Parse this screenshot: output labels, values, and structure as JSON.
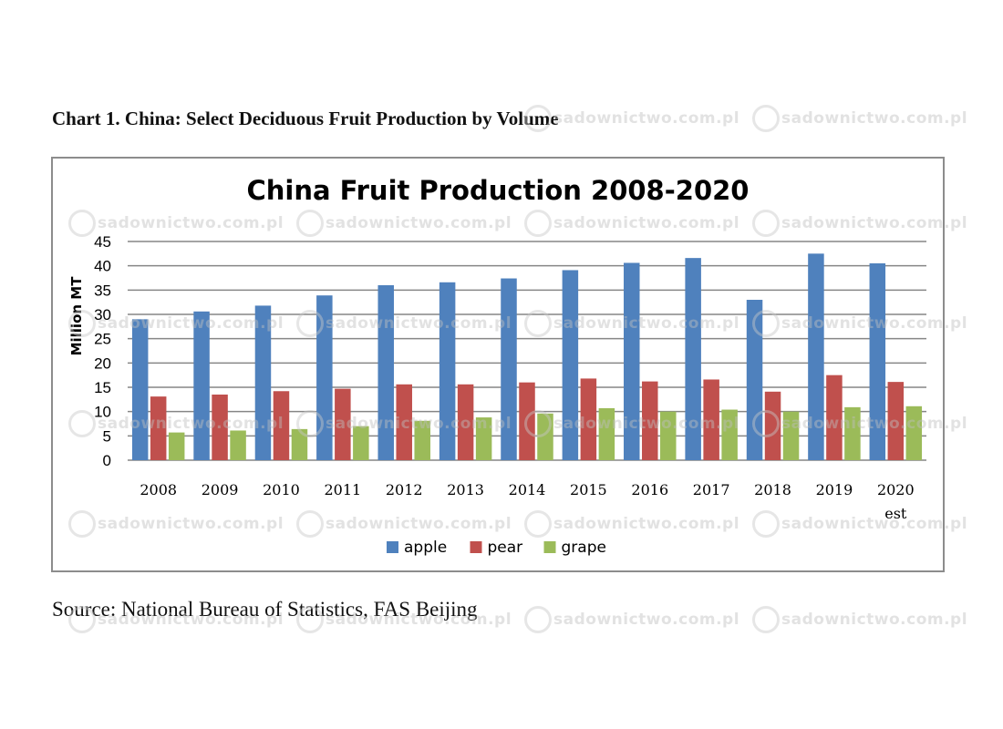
{
  "caption": "Chart 1. China: Select Deciduous Fruit Production by Volume",
  "source": "Source: National Bureau of Statistics, FAS Beijing",
  "watermark": "sadownictwo.com.pl",
  "chart_data": {
    "type": "bar",
    "title": "China Fruit Production 2008-2020",
    "xlabel": "",
    "ylabel": "Million MT",
    "ylim": [
      0,
      45
    ],
    "yticks": [
      0,
      5,
      10,
      15,
      20,
      25,
      30,
      35,
      40,
      45
    ],
    "grid": true,
    "legend_position": "bottom",
    "categories": [
      [
        "2008"
      ],
      [
        "2009"
      ],
      [
        "2010"
      ],
      [
        "2011"
      ],
      [
        "2012"
      ],
      [
        "2013"
      ],
      [
        "2014"
      ],
      [
        "2015"
      ],
      [
        "2016"
      ],
      [
        "2017"
      ],
      [
        "2018"
      ],
      [
        "2019"
      ],
      [
        "2020",
        "est"
      ]
    ],
    "series": [
      {
        "name": "apple",
        "color": "#4f81bd",
        "values": [
          29.0,
          30.6,
          31.8,
          33.9,
          36.0,
          36.6,
          37.4,
          39.1,
          40.6,
          41.6,
          33.0,
          42.5,
          40.5
        ]
      },
      {
        "name": "pear",
        "color": "#c0504d",
        "values": [
          13.1,
          13.5,
          14.2,
          14.7,
          15.6,
          15.6,
          16.0,
          16.8,
          16.2,
          16.6,
          14.1,
          17.5,
          16.1
        ]
      },
      {
        "name": "grape",
        "color": "#9bbb59",
        "values": [
          5.7,
          6.1,
          6.4,
          7.0,
          8.1,
          8.8,
          9.6,
          10.7,
          10.0,
          10.4,
          10.0,
          10.9,
          11.1
        ]
      }
    ]
  }
}
